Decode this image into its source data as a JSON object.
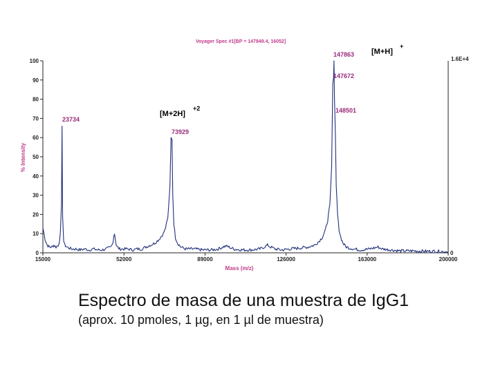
{
  "chart_data": {
    "type": "line",
    "title": "Voyager Spec #1[BP = 147849.4, 16052]",
    "xlabel": "Mass (m/z)",
    "ylabel": "% Intensity",
    "xlim": [
      15000,
      200000
    ],
    "ylim": [
      0,
      100
    ],
    "x_ticks": [
      "15000",
      "52000",
      "89000",
      "126000",
      "163000",
      "200000"
    ],
    "y_ticks": [
      "0",
      "10",
      "20",
      "30",
      "40",
      "50",
      "60",
      "70",
      "80",
      "90",
      "100"
    ],
    "right_axis_top": "1.6E+4",
    "right_axis_bottom": "0",
    "grid": false,
    "series": [
      {
        "values_note_free": true,
        "x": [
          15000,
          15500,
          16000,
          17000,
          18000,
          19000,
          20000,
          21000,
          22000,
          22500,
          23000,
          23500,
          23734,
          24000,
          24500,
          25000,
          26000,
          28000,
          30000,
          32000,
          34000,
          36000,
          38000,
          40000,
          42000,
          44000,
          46000,
          46500,
          47000,
          47400,
          47700,
          48000,
          48500,
          49000,
          50000,
          52000,
          54000,
          56000,
          58000,
          60000,
          62000,
          64000,
          66000,
          68000,
          70000,
          71000,
          72000,
          73000,
          73500,
          73929,
          74300,
          74800,
          75500,
          76500,
          78000,
          80000,
          84000,
          88000,
          92000,
          95000,
          97000,
          98500,
          100000,
          102000,
          106000,
          110000,
          114000,
          116000,
          117500,
          119000,
          121000,
          124000,
          128000,
          132000,
          136000,
          139000,
          141000,
          142500,
          144000,
          145000,
          146000,
          146800,
          147300,
          147672,
          147863,
          148100,
          148501,
          148900,
          149500,
          150200,
          151000,
          152000,
          153500,
          155000,
          157000,
          160000,
          164000,
          166000,
          168000,
          170000,
          174000,
          178000,
          184000,
          190000,
          196000,
          200000
        ],
        "y": [
          13,
          10,
          7,
          4,
          3,
          3,
          4,
          3,
          4,
          6,
          10,
          25,
          66,
          20,
          6,
          4,
          3,
          2,
          2,
          1.5,
          2,
          1.5,
          2,
          1.5,
          1.5,
          2,
          3,
          4,
          6,
          9,
          10,
          8,
          4,
          3,
          2,
          2,
          2,
          1.5,
          2,
          2,
          3,
          4,
          5,
          7,
          10,
          13,
          18,
          35,
          60,
          59,
          30,
          15,
          8,
          5,
          3,
          2,
          2,
          1.5,
          1.5,
          2,
          3,
          3.5,
          3,
          2,
          1.5,
          1.5,
          2,
          3,
          4,
          3,
          2,
          1.5,
          2,
          2.5,
          3,
          4,
          6,
          8,
          12,
          17,
          25,
          45,
          88,
          91,
          100,
          80,
          62,
          35,
          20,
          12,
          8,
          5,
          3,
          2.5,
          2,
          1.5,
          2,
          2.5,
          3,
          2,
          1.5,
          1,
          1,
          0.8,
          0.8,
          0.5
        ]
      }
    ],
    "peak_labels": [
      {
        "x": 23734,
        "y": 66,
        "text": "23734"
      },
      {
        "x": 73929,
        "y": 60,
        "text": "73929"
      },
      {
        "x": 147863,
        "y": 100,
        "text": "147863"
      },
      {
        "x": 147672,
        "y": 90,
        "text": "147672"
      },
      {
        "x": 148501,
        "y": 75,
        "text": "148501"
      }
    ],
    "annotations": [
      {
        "text": "[M+2H]",
        "sup": "+2"
      },
      {
        "text": "[M+H]",
        "sup": "+"
      }
    ]
  },
  "caption": {
    "title": "Espectro de masa de una muestra de IgG1",
    "subtitle": "(aprox. 10 pmoles, 1 µg, en 1 µl de muestra)"
  },
  "colors": {
    "trace": "#1f2f7a",
    "label": "#9a2a7a",
    "axis_title": "#c13a8a"
  }
}
